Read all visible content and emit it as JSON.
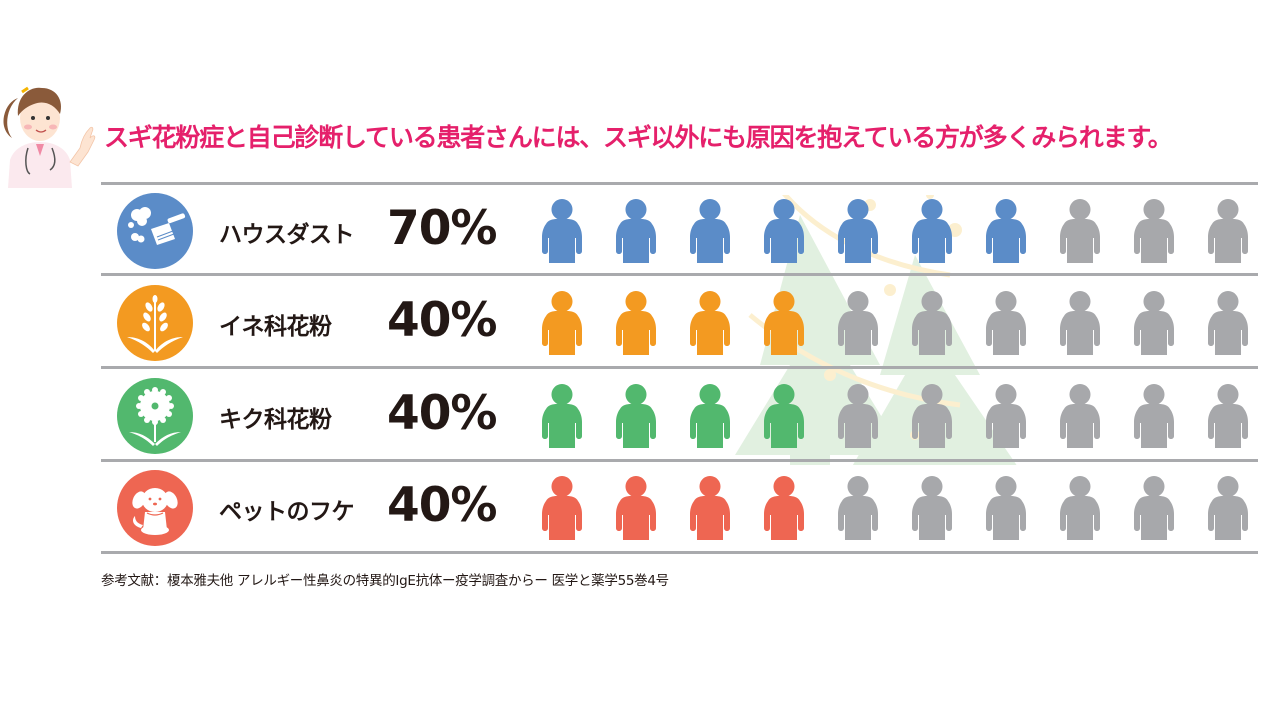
{
  "headline": "スギ花粉症と自己診断している患者さんには、スギ以外にも原因を抱えている方が多くみられます。",
  "reference": "参考文献：榎本雅夫他 アレルギー性鼻炎の特異的IgE抗体ー疫学調査からー 医学と薬学55巻4号",
  "colors": {
    "headline": "#e5206b",
    "inactive_person": "#a7a8ab",
    "divider": "#a9aaad",
    "house_dust": "#5b8cc8",
    "grass_pollen": "#f39a21",
    "compositae_pollen": "#52b86e",
    "pet_dander": "#ee6652"
  },
  "rows": [
    {
      "label": "ハウスダスト",
      "percent": "70%",
      "icon": "duster-dust-icon",
      "color": "#5b8cc8",
      "filled": 7,
      "total": 10
    },
    {
      "label": "イネ科花粉",
      "percent": "40%",
      "icon": "grass-plant-icon",
      "color": "#f39a21",
      "filled": 4,
      "total": 10
    },
    {
      "label": "キク科花粉",
      "percent": "40%",
      "icon": "daisy-flower-icon",
      "color": "#52b86e",
      "filled": 4,
      "total": 10
    },
    {
      "label": "ペットのフケ",
      "percent": "40%",
      "icon": "dog-icon",
      "color": "#ee6652",
      "filled": 4,
      "total": 10
    }
  ],
  "chart_data": {
    "type": "bar",
    "title": "スギ花粉症と自己診断している患者さんには、スギ以外にも原因を抱えている方が多くみられます。",
    "subtitle": "",
    "categories": [
      "ハウスダスト",
      "イネ科花粉",
      "キク科花粉",
      "ペットのフケ"
    ],
    "values": [
      70,
      40,
      40,
      40
    ],
    "unit": "%",
    "representation": "pictogram (10 person icons per row, 1 icon = 10%)",
    "xlabel": "",
    "ylabel": "",
    "ylim": [
      0,
      100
    ],
    "grid": false,
    "legend": null,
    "annotations": [
      "参考文献：榎本雅夫他 アレルギー性鼻炎の特異的IgE抗体ー疫学調査からー 医学と薬学55巻4号"
    ]
  }
}
